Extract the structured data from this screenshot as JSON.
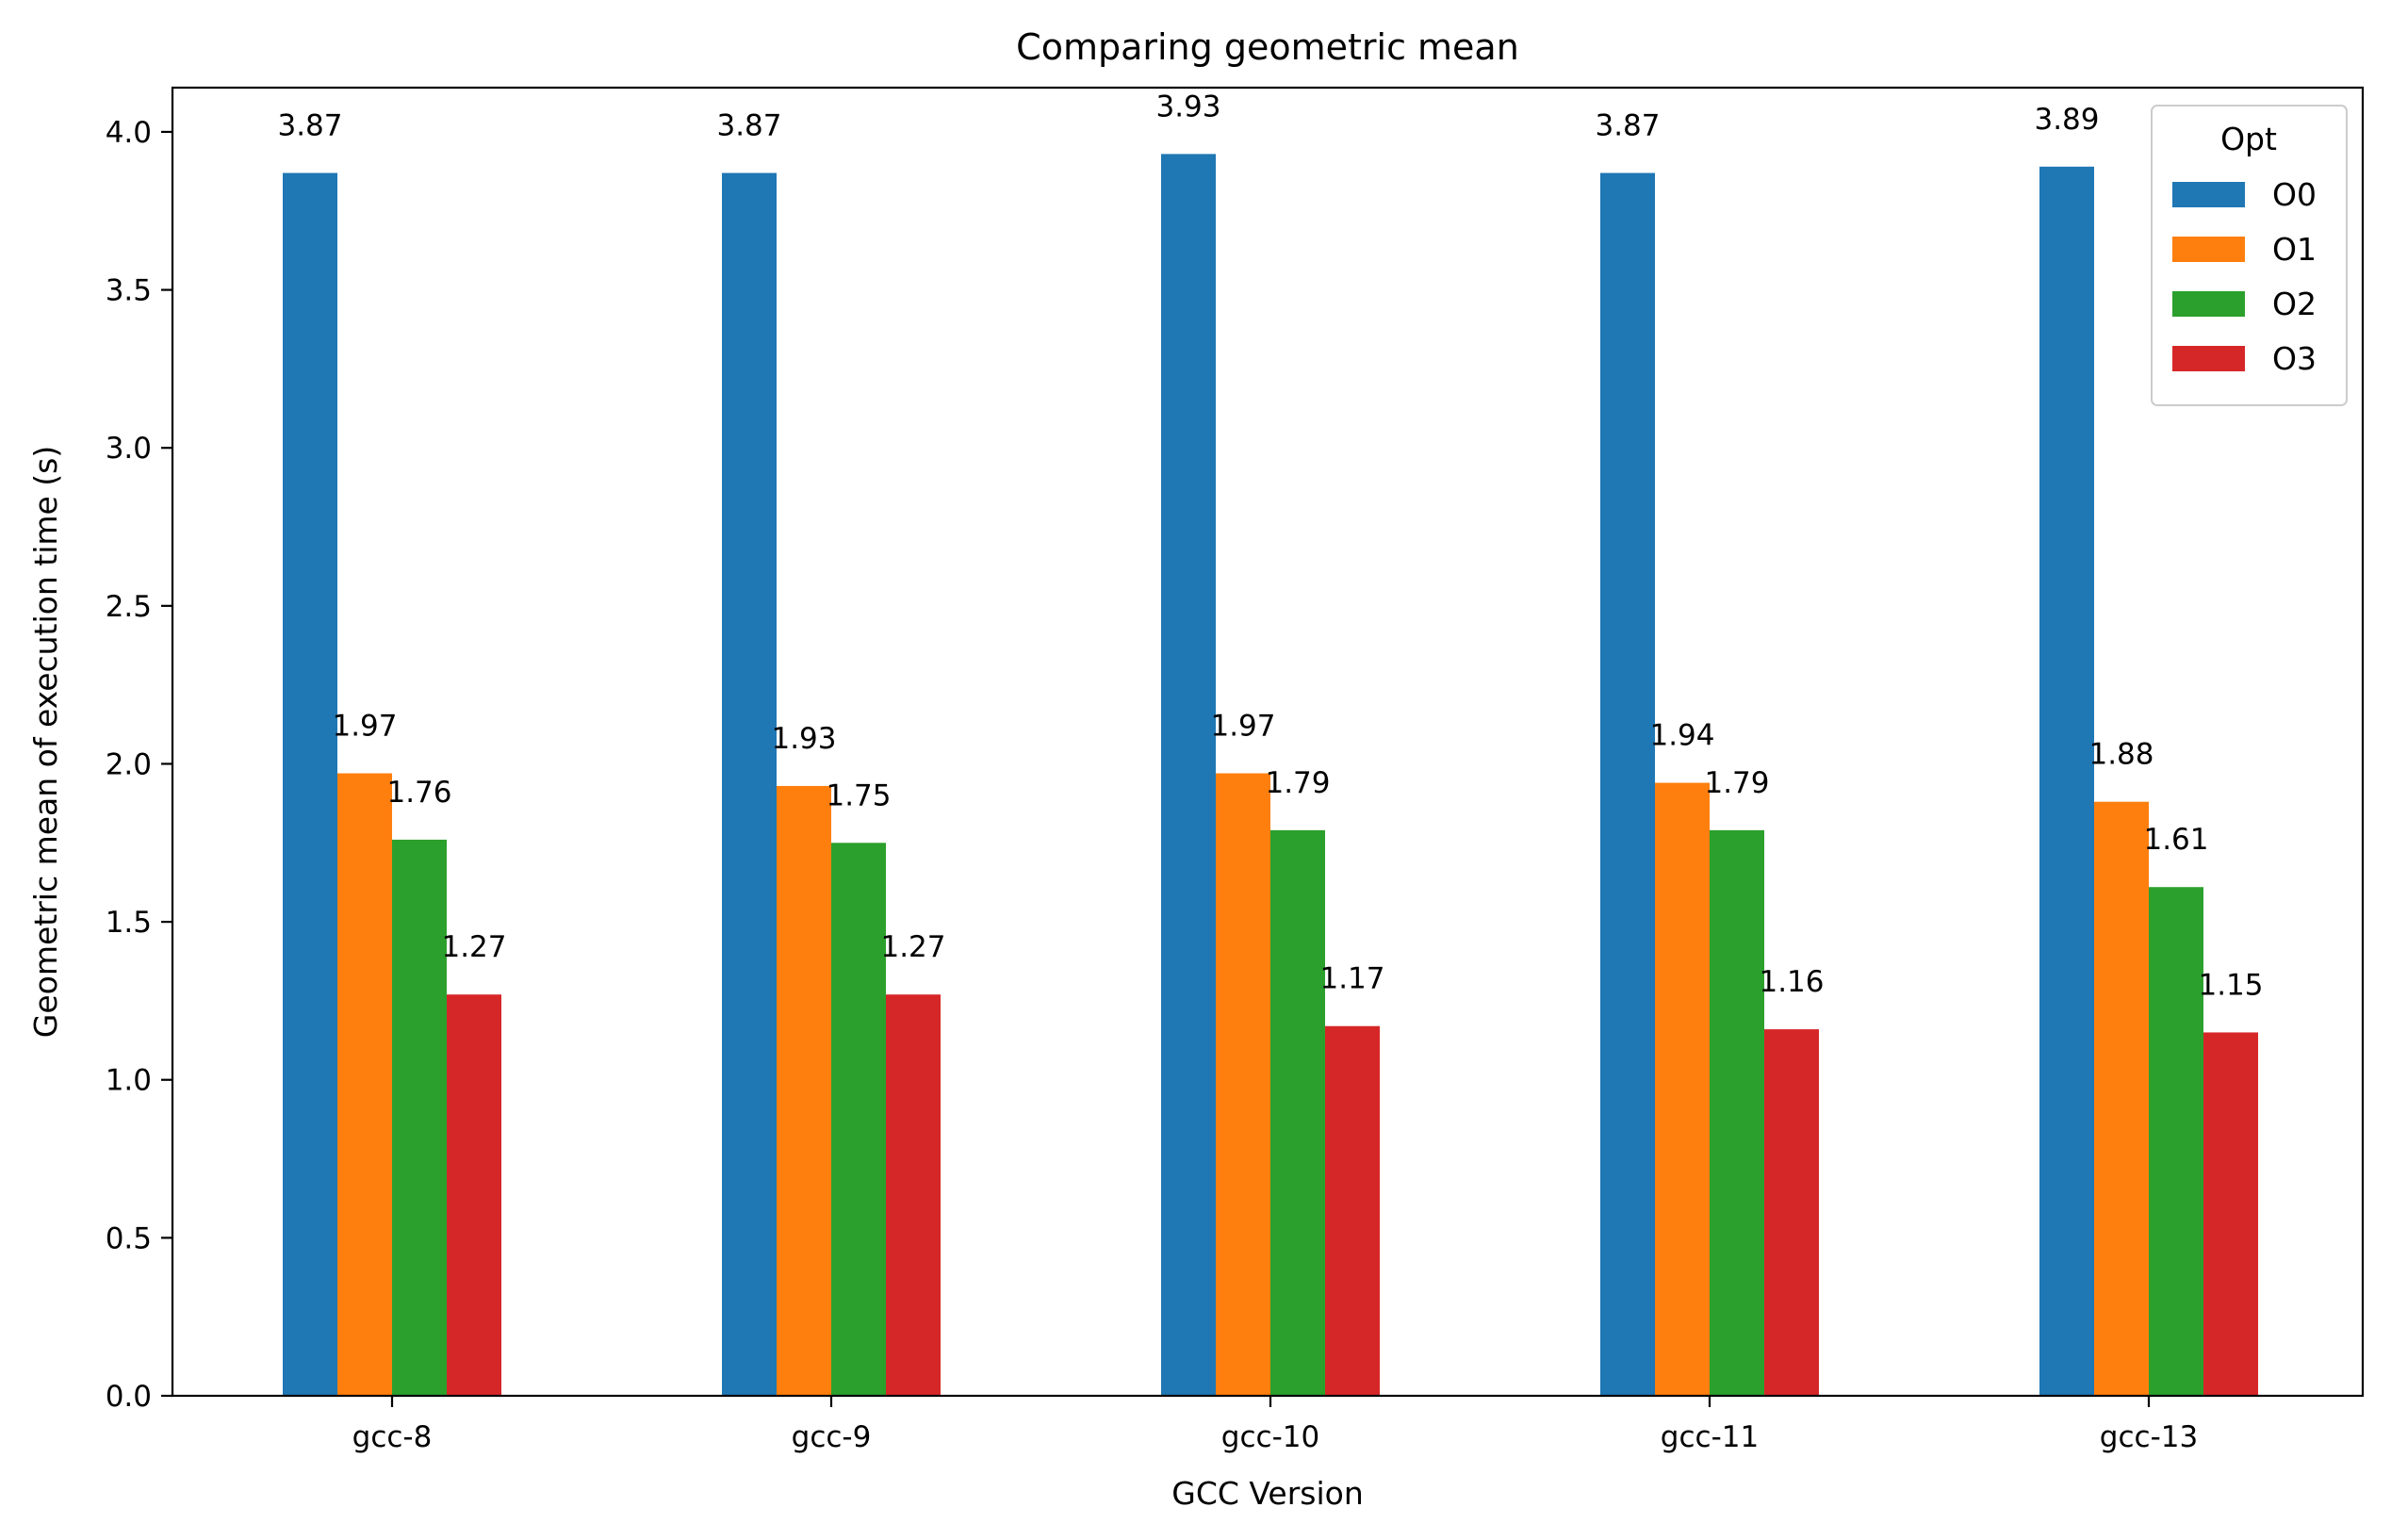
{
  "chart_data": {
    "type": "bar",
    "title": "Comparing geometric mean",
    "xlabel": "GCC Version",
    "ylabel": "Geometric mean of execution time (s)",
    "ylim": [
      0,
      4.14
    ],
    "yticks": [
      "0.0",
      "0.5",
      "1.0",
      "1.5",
      "2.0",
      "2.5",
      "3.0",
      "3.5",
      "4.0"
    ],
    "categories": [
      "gcc-8",
      "gcc-9",
      "gcc-10",
      "gcc-11",
      "gcc-13"
    ],
    "legend": {
      "title": "Opt",
      "placement": "top-right"
    },
    "grid": false,
    "series": [
      {
        "name": "O0",
        "color": "#1f77b4",
        "values": [
          3.87,
          3.87,
          3.93,
          3.87,
          3.89
        ],
        "labels": [
          "3.87",
          "3.87",
          "3.93",
          "3.87",
          "3.89"
        ]
      },
      {
        "name": "O1",
        "color": "#ff7f0e",
        "values": [
          1.97,
          1.93,
          1.97,
          1.94,
          1.88
        ],
        "labels": [
          "1.97",
          "1.93",
          "1.97",
          "1.94",
          "1.88"
        ]
      },
      {
        "name": "O2",
        "color": "#2ca02c",
        "values": [
          1.76,
          1.75,
          1.79,
          1.79,
          1.61
        ],
        "labels": [
          "1.76",
          "1.75",
          "1.79",
          "1.79",
          "1.61"
        ]
      },
      {
        "name": "O3",
        "color": "#d62728",
        "values": [
          1.27,
          1.27,
          1.17,
          1.16,
          1.15
        ],
        "labels": [
          "1.27",
          "1.27",
          "1.17",
          "1.16",
          "1.15"
        ]
      }
    ]
  }
}
